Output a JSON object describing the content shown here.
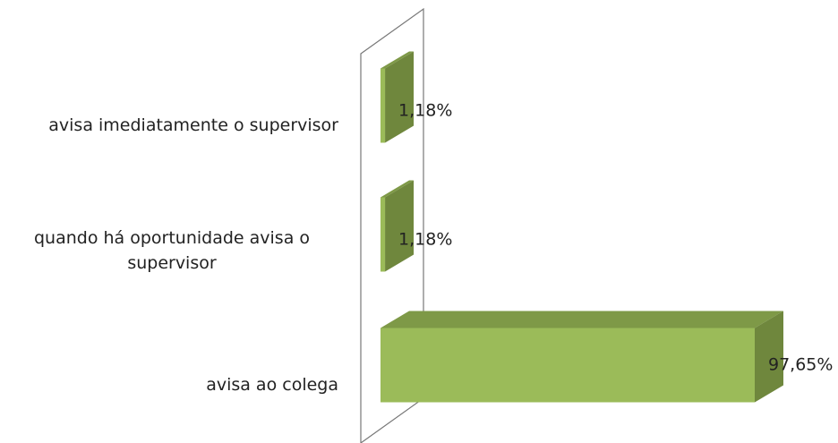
{
  "chart_data": {
    "type": "bar3d_horizontal",
    "categories": [
      "avisa imediatamente o supervisor",
      "quando há oportunidade avisa o supervisor",
      "avisa ao colega"
    ],
    "values": [
      1.18,
      1.18,
      97.65
    ],
    "value_labels": [
      "1,18%",
      "1,18%",
      "97,65%"
    ],
    "color": "#9bbb59"
  }
}
